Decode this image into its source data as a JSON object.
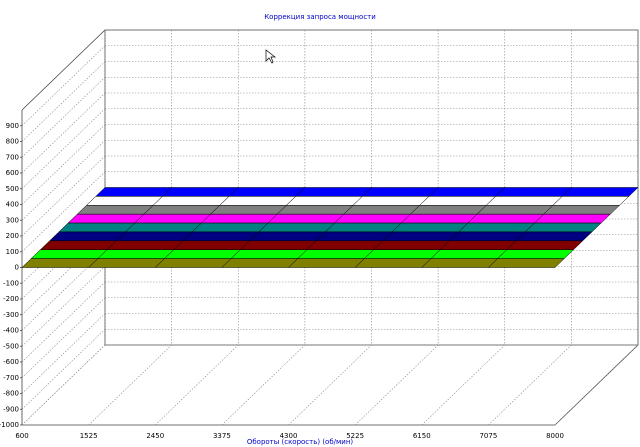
{
  "chart_data": {
    "type": "surface3d",
    "title": "Коррекция запроса мощности",
    "x_label": "Обороты (скорость) (об/мин)",
    "x": [
      600,
      1525,
      2450,
      3375,
      4300,
      5225,
      6150,
      7075,
      8000
    ],
    "xlim": [
      600,
      8000
    ],
    "xticks": [
      600,
      1525,
      2450,
      3375,
      4300,
      5225,
      6150,
      7075,
      8000
    ],
    "ylim": [
      -1000,
      1000
    ],
    "yticks": [
      -1000,
      -900,
      -800,
      -700,
      -600,
      -500,
      -400,
      -300,
      -200,
      -100,
      0,
      100,
      200,
      300,
      400,
      500,
      600,
      700,
      800,
      900
    ],
    "grid": true,
    "series": [
      {
        "color": "#808000",
        "values": [
          0,
          0,
          0,
          0,
          0,
          0,
          0,
          0,
          0
        ]
      },
      {
        "color": "#00ff00",
        "values": [
          0,
          0,
          0,
          0,
          0,
          0,
          0,
          0,
          0
        ]
      },
      {
        "color": "#800000",
        "values": [
          0,
          0,
          0,
          0,
          0,
          0,
          0,
          0,
          0
        ]
      },
      {
        "color": "#000080",
        "values": [
          0,
          0,
          0,
          0,
          0,
          0,
          0,
          0,
          0
        ]
      },
      {
        "color": "#008080",
        "values": [
          0,
          0,
          0,
          0,
          0,
          0,
          0,
          0,
          0
        ]
      },
      {
        "color": "#ff00ff",
        "values": [
          0,
          0,
          0,
          0,
          0,
          0,
          0,
          0,
          0
        ]
      },
      {
        "color": "#808080",
        "values": [
          0,
          0,
          0,
          0,
          0,
          0,
          0,
          0,
          0
        ]
      },
      {
        "color": "#ffffff",
        "values": [
          0,
          0,
          0,
          0,
          0,
          0,
          0,
          0,
          0
        ]
      },
      {
        "color": "#0000ff",
        "values": [
          0,
          0,
          0,
          0,
          0,
          0,
          0,
          0,
          0
        ]
      }
    ]
  }
}
